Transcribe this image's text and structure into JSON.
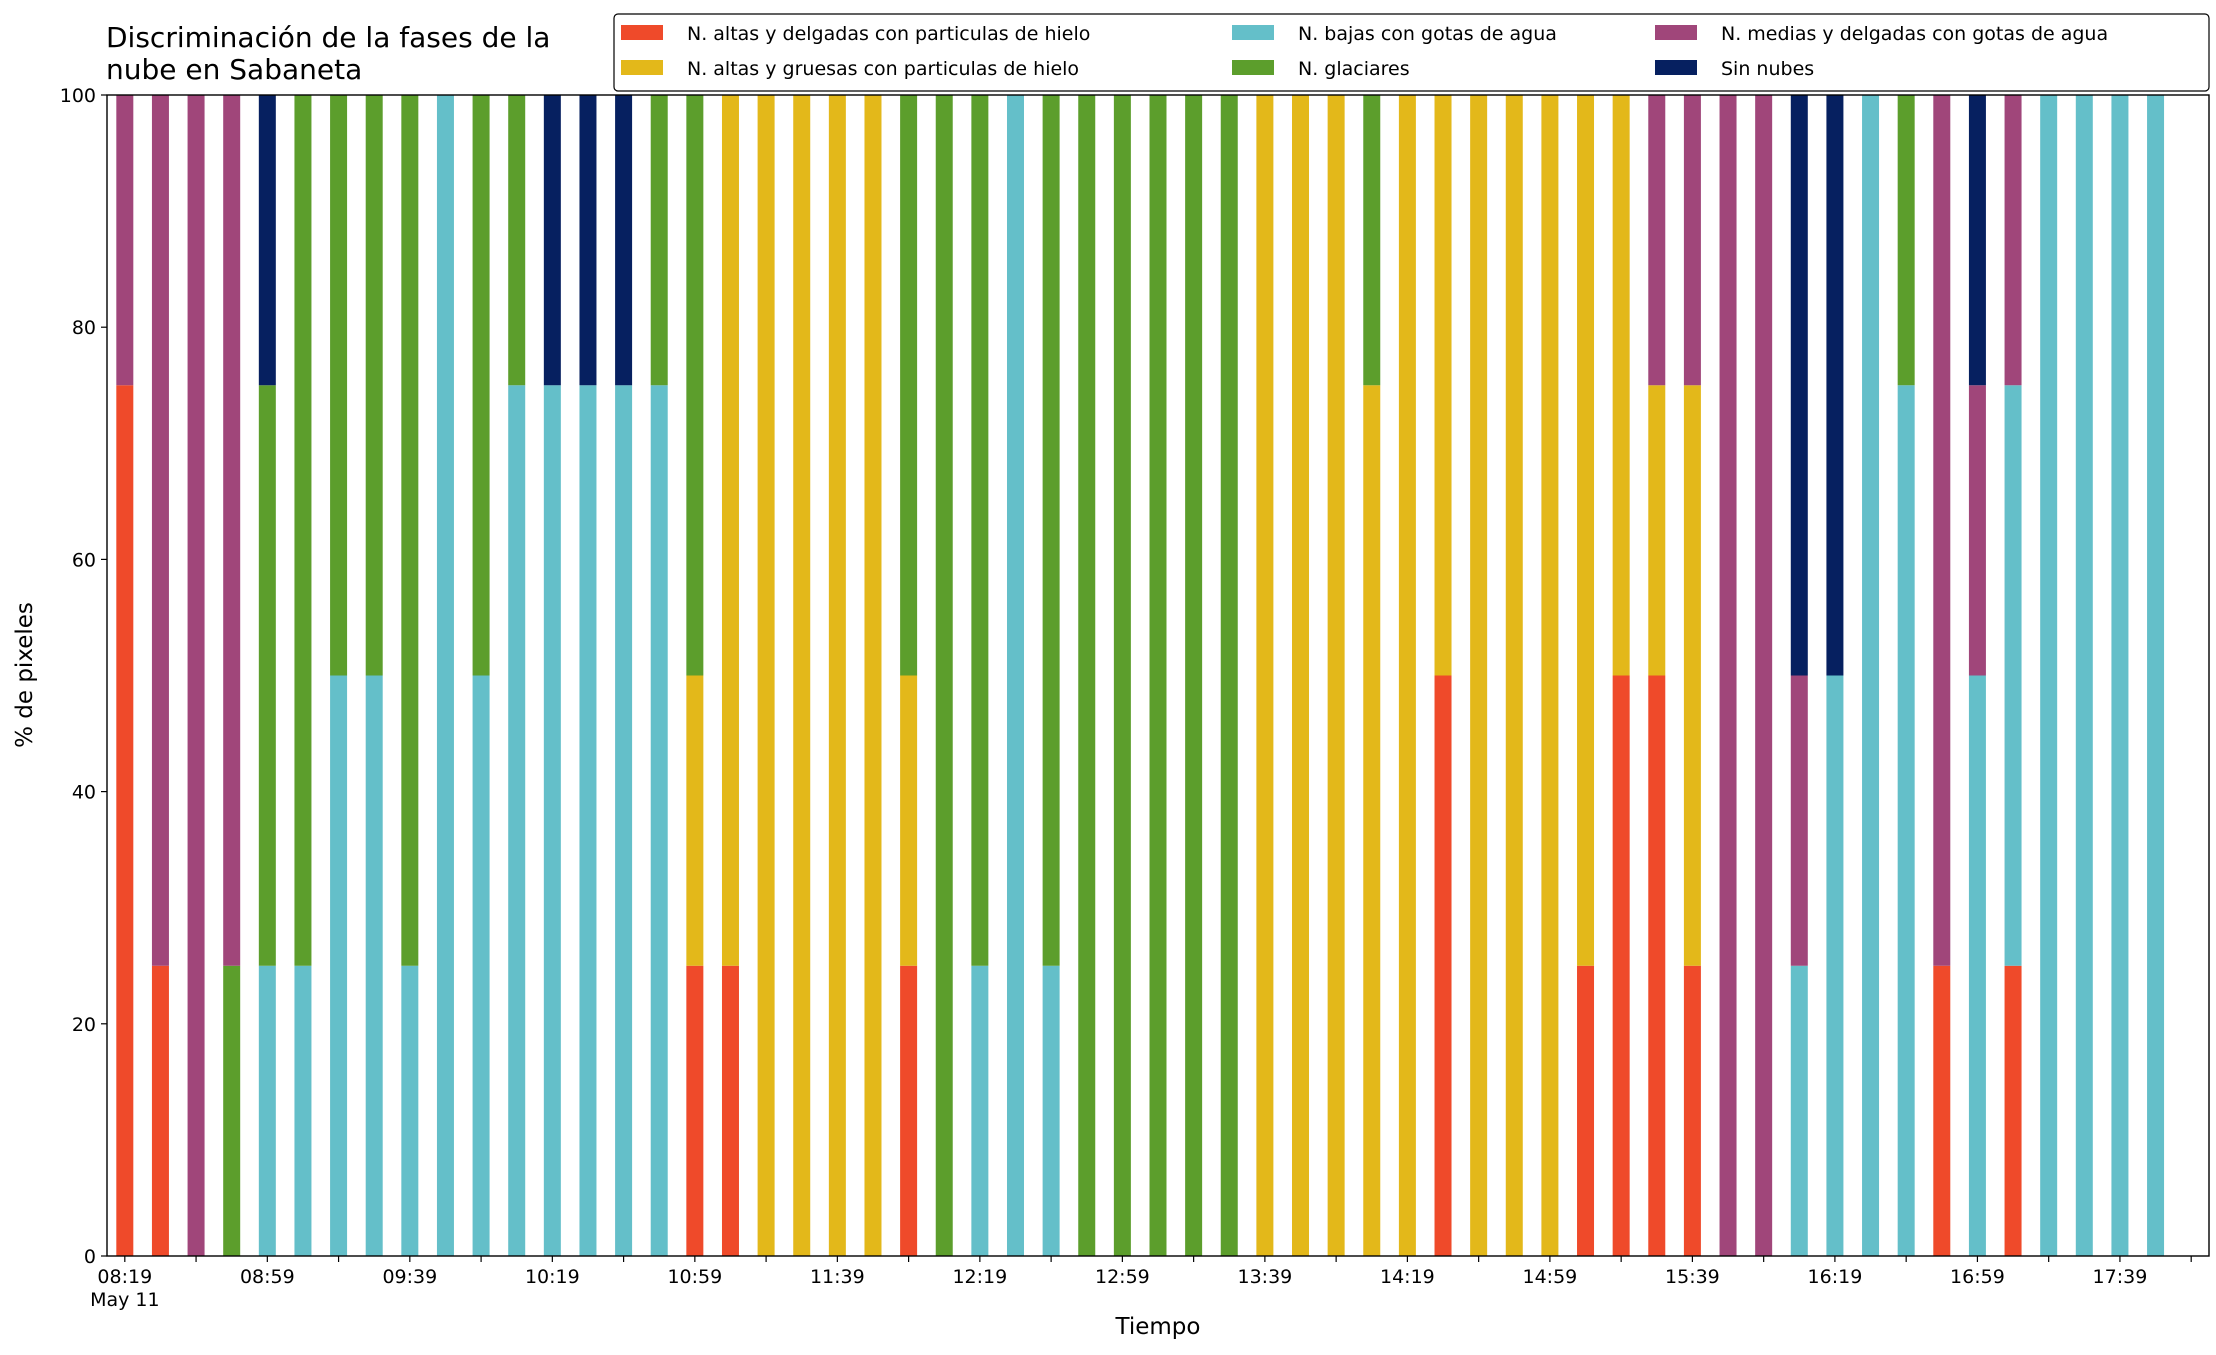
{
  "chart_data": {
    "type": "stacked_bar",
    "title": "Discriminación de la fases de la\nnube en Sabaneta",
    "xlabel": "Tiempo",
    "ylabel": "% de pixeles",
    "x_date_label": "May 11",
    "x": [
      "08:19",
      "08:29",
      "08:39",
      "08:49",
      "08:59",
      "09:09",
      "09:19",
      "09:29",
      "09:39",
      "09:49",
      "09:59",
      "10:09",
      "10:19",
      "10:29",
      "10:39",
      "10:49",
      "10:59",
      "11:09",
      "11:19",
      "11:29",
      "11:39",
      "11:49",
      "11:59",
      "12:09",
      "12:19",
      "12:29",
      "12:39",
      "12:49",
      "12:59",
      "13:09",
      "13:19",
      "13:29",
      "13:39",
      "13:49",
      "13:59",
      "14:09",
      "14:19",
      "14:29",
      "14:39",
      "14:49",
      "14:59",
      "15:09",
      "15:19",
      "15:29",
      "15:39",
      "15:49",
      "15:59",
      "16:09",
      "16:19",
      "16:29",
      "16:39",
      "16:49",
      "16:59",
      "17:09",
      "17:19",
      "17:29",
      "17:39",
      "17:49"
    ],
    "xlim": [
      "08:14",
      "18:04"
    ],
    "xticks": [
      "08:19",
      "08:59",
      "09:39",
      "10:19",
      "10:59",
      "11:39",
      "12:19",
      "12:59",
      "13:39",
      "14:19",
      "14:59",
      "15:39",
      "16:19",
      "16:59",
      "17:39"
    ],
    "xminor_ticks": [
      "08:39",
      "09:19",
      "09:59",
      "10:39",
      "11:19",
      "11:59",
      "12:39",
      "13:19",
      "13:59",
      "14:39",
      "15:19",
      "15:59",
      "16:39",
      "17:19",
      "17:59"
    ],
    "ylim": [
      0,
      100
    ],
    "yticks": [
      0,
      20,
      40,
      60,
      80,
      100
    ],
    "grid": false,
    "legend_position": "top",
    "series": [
      {
        "name": "N. altas y delgadas con particulas de hielo",
        "color": "#ef4a2a",
        "values": [
          75,
          25,
          0,
          0,
          0,
          0,
          0,
          0,
          0,
          0,
          0,
          0,
          0,
          0,
          0,
          0,
          25,
          25,
          0,
          0,
          0,
          0,
          25,
          0,
          0,
          0,
          0,
          0,
          0,
          0,
          0,
          0,
          0,
          0,
          0,
          0,
          0,
          50,
          0,
          0,
          0,
          25,
          50,
          50,
          25,
          0,
          0,
          0,
          0,
          0,
          0,
          25,
          0,
          25,
          0,
          0,
          0,
          0
        ]
      },
      {
        "name": "N. altas y gruesas con particulas de hielo",
        "color": "#e3b81a",
        "values": [
          0,
          0,
          0,
          0,
          0,
          0,
          0,
          0,
          0,
          0,
          0,
          0,
          0,
          0,
          0,
          0,
          25,
          75,
          100,
          100,
          100,
          100,
          25,
          0,
          0,
          0,
          0,
          0,
          0,
          0,
          0,
          0,
          100,
          100,
          100,
          75,
          100,
          50,
          100,
          100,
          100,
          75,
          50,
          25,
          50,
          0,
          0,
          0,
          0,
          0,
          0,
          0,
          0,
          0,
          0,
          0,
          0,
          0
        ]
      },
      {
        "name": "N. bajas con gotas de agua",
        "color": "#64bfc9",
        "values": [
          0,
          0,
          0,
          0,
          25,
          25,
          50,
          50,
          25,
          100,
          50,
          75,
          75,
          75,
          75,
          75,
          0,
          0,
          0,
          0,
          0,
          0,
          0,
          0,
          25,
          100,
          25,
          0,
          0,
          0,
          0,
          0,
          0,
          0,
          0,
          0,
          0,
          0,
          0,
          0,
          0,
          0,
          0,
          0,
          0,
          0,
          0,
          25,
          50,
          100,
          75,
          0,
          50,
          50,
          100,
          100,
          100,
          100
        ]
      },
      {
        "name": "N. glaciares",
        "color": "#5c9e2c",
        "values": [
          0,
          0,
          0,
          25,
          50,
          75,
          50,
          50,
          75,
          0,
          50,
          25,
          0,
          0,
          0,
          25,
          50,
          0,
          0,
          0,
          0,
          0,
          50,
          100,
          75,
          0,
          75,
          100,
          100,
          100,
          100,
          100,
          0,
          0,
          0,
          25,
          0,
          0,
          0,
          0,
          0,
          0,
          0,
          0,
          0,
          0,
          0,
          0,
          0,
          0,
          25,
          0,
          0,
          0,
          0,
          0,
          0,
          0
        ]
      },
      {
        "name": "N. medias y delgadas con gotas de agua",
        "color": "#a0467a",
        "values": [
          25,
          75,
          100,
          75,
          0,
          0,
          0,
          0,
          0,
          0,
          0,
          0,
          0,
          0,
          0,
          0,
          0,
          0,
          0,
          0,
          0,
          0,
          0,
          0,
          0,
          0,
          0,
          0,
          0,
          0,
          0,
          0,
          0,
          0,
          0,
          0,
          0,
          0,
          0,
          0,
          0,
          0,
          0,
          25,
          25,
          100,
          100,
          25,
          0,
          0,
          0,
          75,
          25,
          25,
          0,
          0,
          0,
          0
        ]
      },
      {
        "name": "Sin nubes",
        "color": "#062060",
        "values": [
          0,
          0,
          0,
          0,
          25,
          0,
          0,
          0,
          0,
          0,
          0,
          0,
          25,
          25,
          25,
          0,
          0,
          0,
          0,
          0,
          0,
          0,
          0,
          0,
          0,
          0,
          0,
          0,
          0,
          0,
          0,
          0,
          0,
          0,
          0,
          0,
          0,
          0,
          0,
          0,
          0,
          0,
          0,
          0,
          0,
          0,
          0,
          50,
          50,
          0,
          0,
          0,
          25,
          0,
          0,
          0,
          0,
          0
        ]
      }
    ]
  }
}
